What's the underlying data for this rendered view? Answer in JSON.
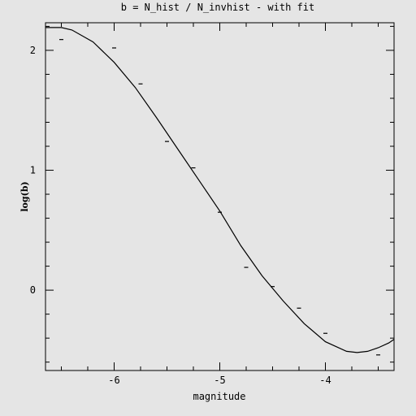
{
  "chart_data": {
    "type": "scatter",
    "title": "b = N_hist / N_invhist - with fit",
    "xlabel": "magnitude",
    "ylabel": "log(b)",
    "xlim": [
      -6.65,
      -3.35
    ],
    "ylim": [
      -0.67,
      2.23
    ],
    "x_ticks": [
      -6,
      -5,
      -4
    ],
    "y_ticks": [
      0,
      1,
      2
    ],
    "x_tick_labels": [
      "-6",
      "-5",
      "-4"
    ],
    "y_tick_labels": [
      "0",
      "1",
      "2"
    ],
    "grid": false,
    "legend": "none",
    "series": [
      {
        "kind": "points",
        "marker": "dash",
        "x": [
          -6.5,
          -6.0,
          -5.75,
          -5.5,
          -5.25,
          -5.0,
          -4.75,
          -4.5,
          -4.25,
          -4.0,
          -3.5
        ],
        "y": [
          2.09,
          2.02,
          1.72,
          1.24,
          1.02,
          0.65,
          0.19,
          0.03,
          -0.15,
          -0.36,
          -0.54
        ]
      },
      {
        "kind": "fit-line",
        "x": [
          -6.65,
          -6.5,
          -6.4,
          -6.2,
          -6.0,
          -5.8,
          -5.6,
          -5.4,
          -5.2,
          -5.0,
          -4.8,
          -4.6,
          -4.4,
          -4.2,
          -4.0,
          -3.8,
          -3.7,
          -3.6,
          -3.5,
          -3.4,
          -3.35
        ],
        "y": [
          2.19,
          2.19,
          2.17,
          2.07,
          1.9,
          1.69,
          1.44,
          1.18,
          0.92,
          0.66,
          0.37,
          0.12,
          -0.09,
          -0.28,
          -0.43,
          -0.51,
          -0.52,
          -0.51,
          -0.48,
          -0.44,
          -0.41
        ]
      }
    ]
  },
  "colors": {
    "background": "#e5e5e5",
    "ink": "#000000"
  }
}
